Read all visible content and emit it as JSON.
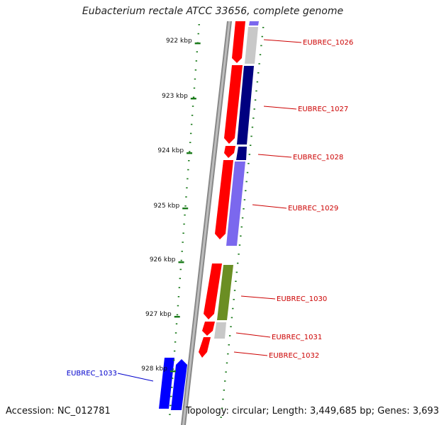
{
  "title": "Eubacterium rectale ATCC 33656, complete genome",
  "footer": {
    "accession": "Accession: NC_012781",
    "topology": "Topology: circular; Length: 3,449,685 bp; Genes: 3,693"
  },
  "colors": {
    "forward_cds": "#ff0000",
    "reverse_nav": "#000080",
    "reverse_light": "#7b68ee",
    "reverse_olive": "#6b8e23",
    "reverse_gray": "#c8c8c8",
    "reverse_blue": "#0000ff",
    "scale": "#1a7a1a",
    "label_red": "#cc0000",
    "label_blue": "#0000cc"
  },
  "scale_labels": [
    "922 kbp",
    "923 kbp",
    "924 kbp",
    "925 kbp",
    "926 kbp",
    "927 kbp",
    "928 kbp"
  ],
  "genes": [
    {
      "name": "EUBREC_1026",
      "label_color": "label_red"
    },
    {
      "name": "EUBREC_1027",
      "label_color": "label_red"
    },
    {
      "name": "EUBREC_1028",
      "label_color": "label_red"
    },
    {
      "name": "EUBREC_1029",
      "label_color": "label_red"
    },
    {
      "name": "EUBREC_1030",
      "label_color": "label_red"
    },
    {
      "name": "EUBREC_1031",
      "label_color": "label_red"
    },
    {
      "name": "EUBREC_1032",
      "label_color": "label_red"
    },
    {
      "name": "EUBREC_1033",
      "label_color": "label_blue"
    }
  ]
}
